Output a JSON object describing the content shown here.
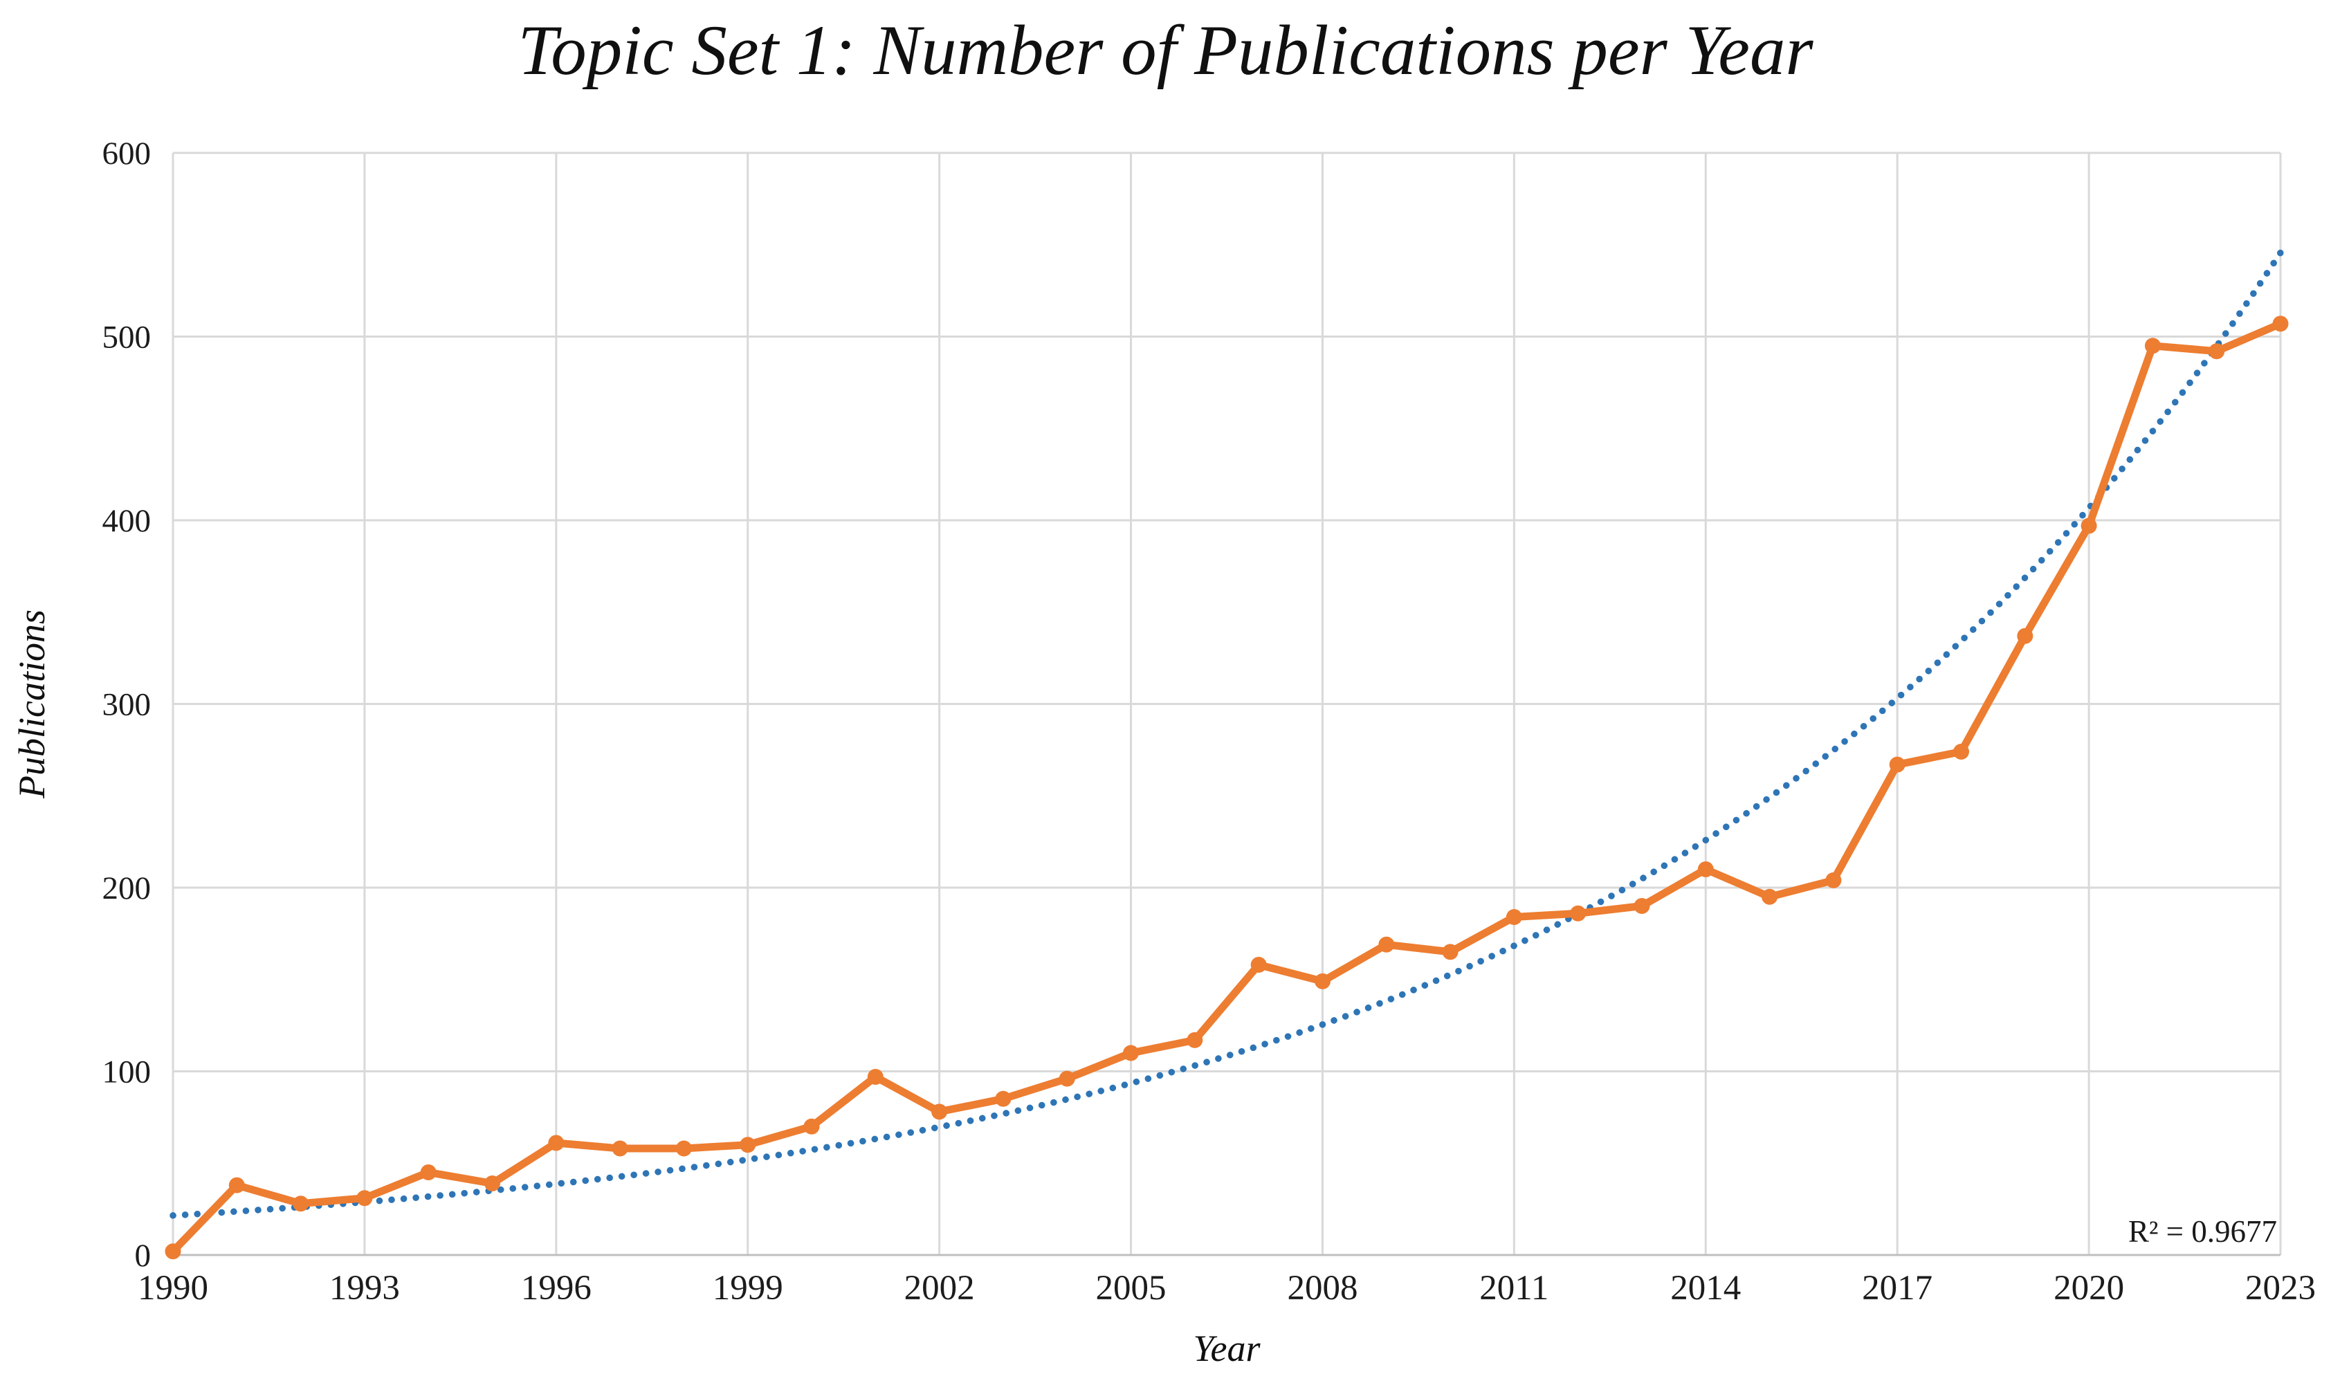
{
  "title": "Topic Set 1: Number of Publications per Year",
  "axes": {
    "x_label": "Year",
    "y_label": "Publications"
  },
  "annotation": {
    "r_squared_label": "R² = 0.9677"
  },
  "colors": {
    "series_orange": "#ED7D31",
    "trendline_blue": "#2E75B6",
    "gridline_gray": "#D9D9D9",
    "axis_gray": "#BFBFBF",
    "text_black": "#1c1c1c"
  },
  "chart_data": {
    "type": "line",
    "title": "Topic Set 1: Number of Publications per Year",
    "xlabel": "Year",
    "ylabel": "Publications",
    "xlim": [
      1990,
      2023
    ],
    "ylim": [
      0,
      600
    ],
    "grid": true,
    "legend": "none",
    "x": [
      1990,
      1991,
      1992,
      1993,
      1994,
      1995,
      1996,
      1997,
      1998,
      1999,
      2000,
      2001,
      2002,
      2003,
      2004,
      2005,
      2006,
      2007,
      2008,
      2009,
      2010,
      2011,
      2012,
      2013,
      2014,
      2015,
      2016,
      2017,
      2018,
      2019,
      2020,
      2021,
      2022,
      2023
    ],
    "series": [
      {
        "name": "Publications",
        "color": "#ED7D31",
        "values": [
          2,
          38,
          28,
          31,
          45,
          39,
          61,
          58,
          58,
          60,
          70,
          97,
          78,
          85,
          96,
          110,
          117,
          158,
          149,
          169,
          165,
          184,
          186,
          190,
          210,
          195,
          204,
          267,
          274,
          337,
          397,
          495,
          492,
          507
        ]
      }
    ],
    "trendline": {
      "type": "exponential",
      "color": "#2E75B6",
      "start_year": 1990,
      "a": 21.5,
      "b": 0.098,
      "r2": 0.9677,
      "label": "R² = 0.9677"
    },
    "x_ticks": [
      1990,
      1993,
      1996,
      1999,
      2002,
      2005,
      2008,
      2011,
      2014,
      2017,
      2020,
      2023
    ],
    "x_tick_labels": [
      "1990",
      "1993",
      "1996",
      "1999",
      "2002",
      "2005",
      "2008",
      "2011",
      "2014",
      "2017",
      "2020",
      "2023"
    ],
    "y_ticks": [
      0,
      100,
      200,
      300,
      400,
      500,
      600
    ],
    "y_tick_labels": [
      "0",
      "100",
      "200",
      "300",
      "400",
      "500",
      "600"
    ]
  }
}
